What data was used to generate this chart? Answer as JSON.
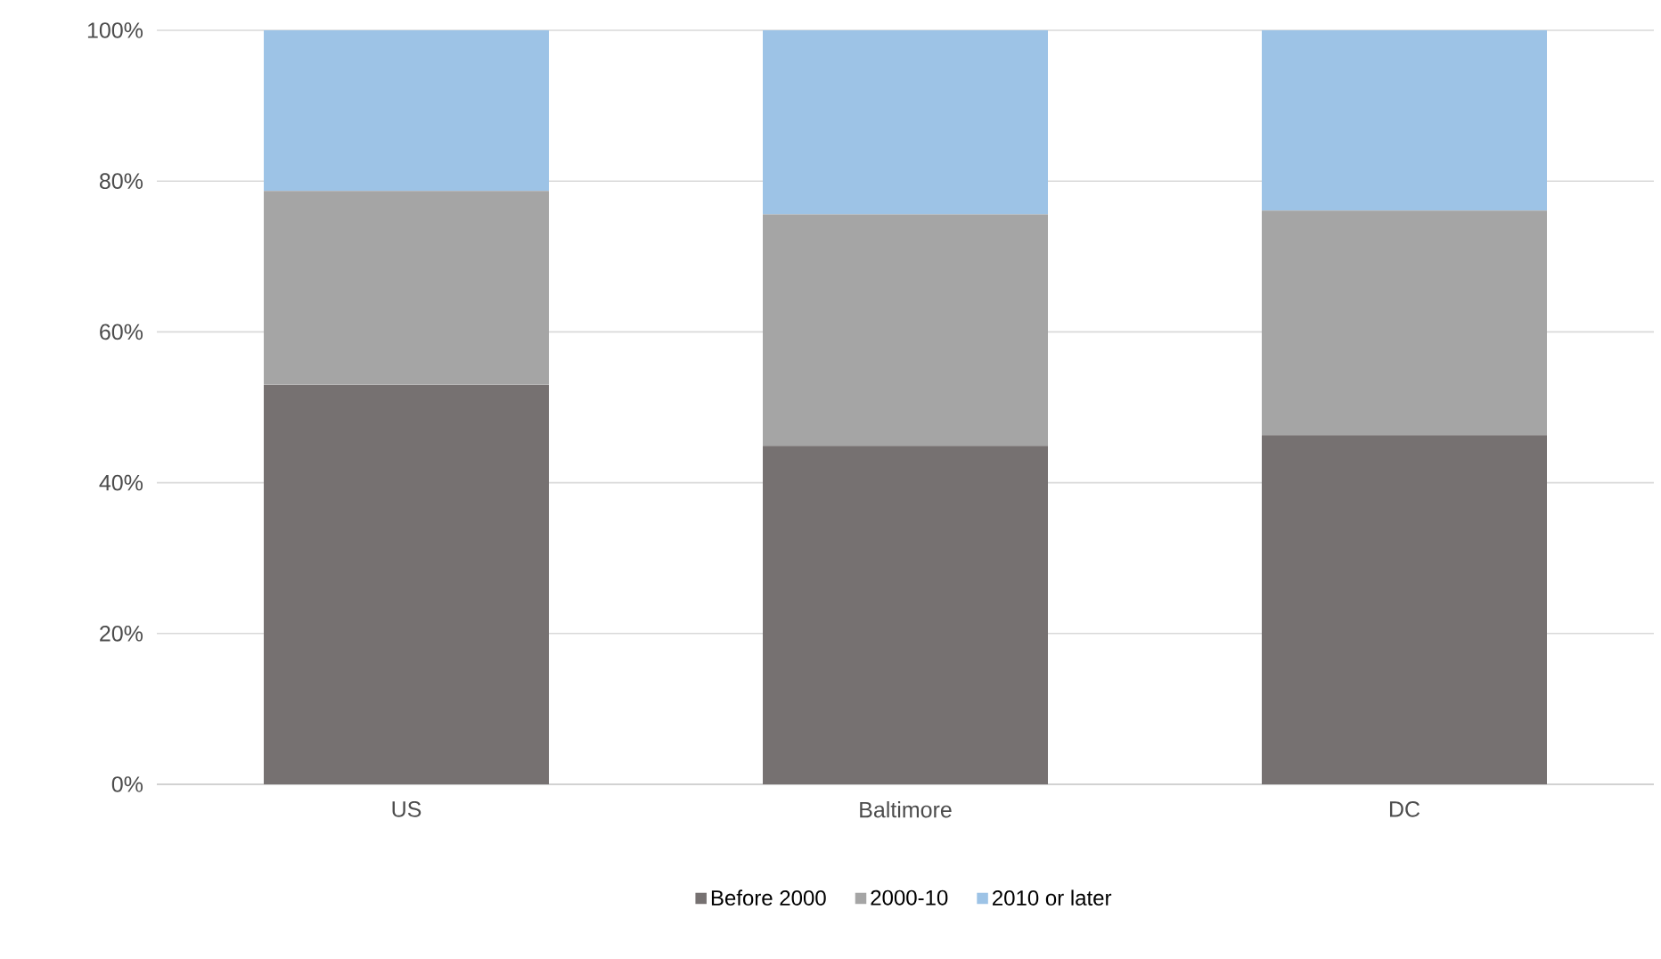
{
  "chart_data": {
    "type": "bar",
    "stacked": true,
    "categories": [
      "US",
      "Baltimore",
      "DC"
    ],
    "series": [
      {
        "name": "Before 2000",
        "color": "#767171",
        "values": [
          53.0,
          44.9,
          46.3
        ]
      },
      {
        "name": "2000-10",
        "color": "#a5a5a5",
        "values": [
          25.7,
          30.7,
          29.8
        ]
      },
      {
        "name": "2010 or later",
        "color": "#9dc3e6",
        "values": [
          21.3,
          24.4,
          23.9
        ]
      }
    ],
    "ylim": [
      0,
      100
    ],
    "yticks": [
      {
        "value": 0,
        "label": "0%"
      },
      {
        "value": 20,
        "label": "20%"
      },
      {
        "value": 40,
        "label": "40%"
      },
      {
        "value": 60,
        "label": "60%"
      },
      {
        "value": 80,
        "label": "80%"
      },
      {
        "value": 100,
        "label": "100%"
      }
    ],
    "grid": "y",
    "legend": "bottom"
  }
}
